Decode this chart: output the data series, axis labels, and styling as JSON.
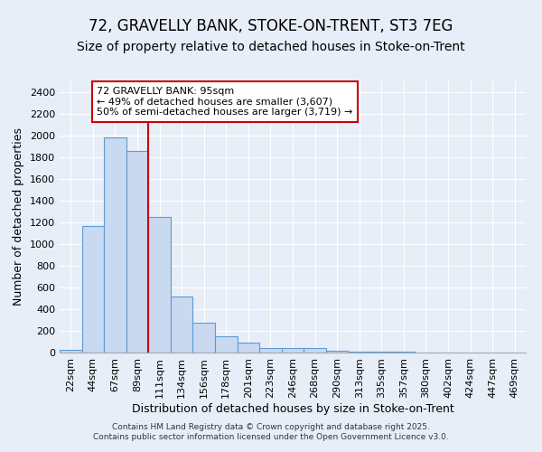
{
  "title": "72, GRAVELLY BANK, STOKE-ON-TRENT, ST3 7EG",
  "subtitle": "Size of property relative to detached houses in Stoke-on-Trent",
  "xlabel": "Distribution of detached houses by size in Stoke-on-Trent",
  "ylabel": "Number of detached properties",
  "bin_labels": [
    "22sqm",
    "44sqm",
    "67sqm",
    "89sqm",
    "111sqm",
    "134sqm",
    "156sqm",
    "178sqm",
    "201sqm",
    "223sqm",
    "246sqm",
    "268sqm",
    "290sqm",
    "313sqm",
    "335sqm",
    "357sqm",
    "380sqm",
    "402sqm",
    "424sqm",
    "447sqm",
    "469sqm"
  ],
  "bar_values": [
    25,
    1170,
    1980,
    1860,
    1250,
    520,
    275,
    150,
    90,
    45,
    40,
    38,
    18,
    10,
    8,
    5,
    3,
    2,
    2,
    1,
    2
  ],
  "bar_color": "#c9d9f0",
  "bar_edge_color": "#5b9bd5",
  "background_color": "#e8eef8",
  "grid_color": "#ffffff",
  "vline_color": "#cc0000",
  "annotation_text": "72 GRAVELLY BANK: 95sqm\n← 49% of detached houses are smaller (3,607)\n50% of semi-detached houses are larger (3,719) →",
  "annotation_box_color": "#ffffff",
  "annotation_box_edge": "#cc0000",
  "ylim": [
    0,
    2500
  ],
  "yticks": [
    0,
    200,
    400,
    600,
    800,
    1000,
    1200,
    1400,
    1600,
    1800,
    2000,
    2200,
    2400
  ],
  "footer_text": "Contains HM Land Registry data © Crown copyright and database right 2025.\nContains public sector information licensed under the Open Government Licence v3.0.",
  "title_fontsize": 12,
  "subtitle_fontsize": 10,
  "axis_label_fontsize": 9,
  "tick_fontsize": 8,
  "annot_fontsize": 8,
  "footer_fontsize": 6.5
}
